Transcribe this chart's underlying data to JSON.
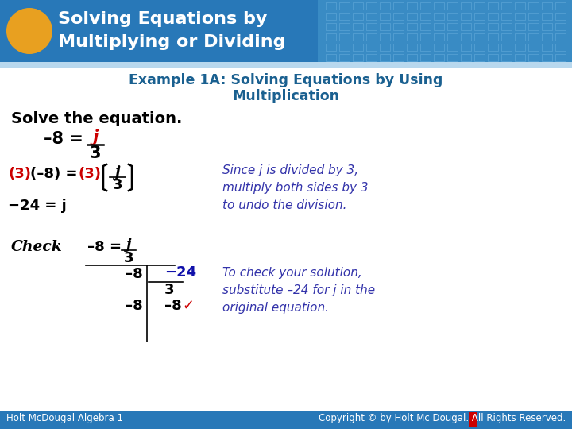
{
  "title_line1": "Solving Equations by",
  "title_line2": "Multiplying or Dividing",
  "header_bg_color": "#2878B8",
  "header_text_color": "#FFFFFF",
  "ellipse_color": "#E8A020",
  "example_title_color": "#1a6090",
  "body_bg_color": "#FFFFFF",
  "note_color": "#3333AA",
  "check_note_color": "#3333AA",
  "red_color": "#CC0000",
  "black_color": "#000000",
  "blue_color": "#1010AA",
  "footer_bg": "#2878B8",
  "footer_text_color": "#FFFFFF",
  "footer_left": "Holt McDougal Algebra 1",
  "footer_right": "Copyright © by Holt Mc Dougal. All Rights Reserved.",
  "grid_color": "#5599CC",
  "strip_color": "#B8D8EE"
}
